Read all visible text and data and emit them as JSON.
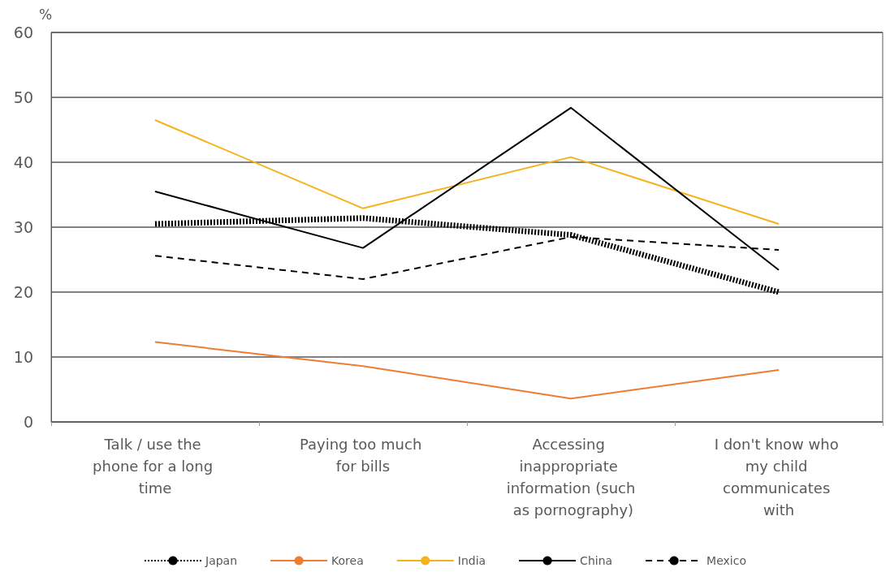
{
  "chart_data": {
    "type": "line",
    "ylabel": "%",
    "categories": [
      "Talk / use the phone for a long time",
      "Paying too much for bills",
      "Accessing inappropriate information (such as pornography)",
      "I don't know who my child communicates with"
    ],
    "series": [
      {
        "name": "Japan",
        "color": "#000000",
        "line_style": "dotted",
        "values": [
          30.5,
          31.4,
          28.8,
          20
        ]
      },
      {
        "name": "Korea",
        "color": "#ed7d31",
        "values": [
          12.3,
          8.6,
          3.6,
          8
        ]
      },
      {
        "name": "India",
        "color": "#f5b21c",
        "values": [
          46.5,
          32.9,
          40.8,
          30.5
        ]
      },
      {
        "name": "China",
        "color": "#000000",
        "values": [
          35.5,
          26.8,
          48.4,
          23.4
        ]
      },
      {
        "name": "Mexico",
        "color": "#000000",
        "line_style": "dashed",
        "values": [
          25.6,
          22,
          28.5,
          26.5
        ]
      }
    ],
    "ylim": [
      0,
      60
    ],
    "yticks": [
      0,
      10,
      20,
      30,
      40,
      50,
      60
    ],
    "grid": "y",
    "legend": "bottom",
    "marker": "none"
  }
}
